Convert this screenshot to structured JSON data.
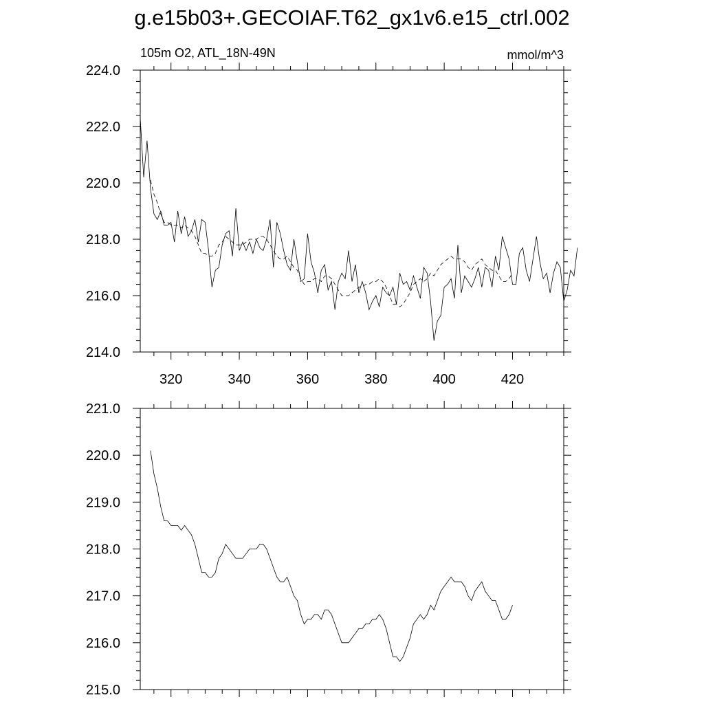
{
  "title": "g.e15b03+.GECOIAF.T62_gx1v6.e15_ctrl.002",
  "chart_data": [
    {
      "type": "line",
      "left_label": "105m O2, ATL_18N-49N",
      "right_label": "mmol/m^3",
      "xlim": [
        311,
        435
      ],
      "ylim": [
        214.0,
        224.0
      ],
      "x_ticks": [
        "320",
        "340",
        "360",
        "380",
        "400",
        "420"
      ],
      "y_ticks": [
        "214.0",
        "216.0",
        "218.0",
        "220.0",
        "222.0",
        "224.0"
      ],
      "x_start": 311,
      "series": [
        {
          "style": "solid",
          "values": [
            222.3,
            220.2,
            221.5,
            219.8,
            218.9,
            218.7,
            219.0,
            218.5,
            218.5,
            218.6,
            217.9,
            219.0,
            218.2,
            218.8,
            218.1,
            218.3,
            218.7,
            217.9,
            218.7,
            218.6,
            217.6,
            216.3,
            216.9,
            217.0,
            217.8,
            218.2,
            218.3,
            217.4,
            219.1,
            217.6,
            217.9,
            217.6,
            217.9,
            217.5,
            218.0,
            217.7,
            217.6,
            218.0,
            218.7,
            217.0,
            218.6,
            218.2,
            217.6,
            217.1,
            216.9,
            218.0,
            217.2,
            216.5,
            216.6,
            218.2,
            217.2,
            216.8,
            216.1,
            216.9,
            217.1,
            216.2,
            216.5,
            215.5,
            216.5,
            216.8,
            216.6,
            217.6,
            216.5,
            217.1,
            216.1,
            216.5,
            216.1,
            215.5,
            215.8,
            216.0,
            215.6,
            216.3,
            216.1,
            216.0,
            216.3,
            215.7,
            216.8,
            216.4,
            216.5,
            216.2,
            216.7,
            216.3,
            215.9,
            217.0,
            216.8,
            215.8,
            214.4,
            215.1,
            215.3,
            216.3,
            216.4,
            216.6,
            215.9,
            217.8,
            216.1,
            216.7,
            216.5,
            216.3,
            216.6,
            217.0,
            216.3,
            217.0,
            216.9,
            216.3,
            217.4,
            216.9,
            218.1,
            217.7,
            217.3,
            216.4,
            216.4,
            217.5,
            217.7,
            216.9,
            216.5,
            217.3,
            218.1,
            217.2,
            216.6,
            216.8,
            216.1,
            216.8,
            217.2,
            217.0,
            215.8,
            216.2,
            216.9,
            216.7,
            217.7
          ]
        },
        {
          "style": "dashed",
          "values": [
            null,
            null,
            null,
            220.1,
            219.6,
            219.3,
            218.9,
            218.6,
            218.6,
            218.5,
            218.5,
            218.5,
            218.4,
            218.5,
            218.4,
            218.3,
            218.1,
            217.8,
            217.5,
            217.5,
            217.4,
            217.4,
            217.5,
            217.8,
            217.9,
            218.1,
            218.0,
            217.9,
            217.8,
            217.8,
            217.8,
            217.9,
            218.0,
            218.0,
            218.0,
            218.1,
            218.1,
            218.0,
            217.8,
            217.6,
            217.4,
            217.3,
            217.3,
            217.4,
            217.2,
            217.0,
            216.9,
            216.6,
            216.4,
            216.5,
            216.5,
            216.6,
            216.6,
            216.5,
            216.7,
            216.7,
            216.6,
            216.4,
            216.2,
            216.0,
            216.0,
            216.0,
            216.1,
            216.2,
            216.3,
            216.3,
            216.4,
            216.4,
            216.5,
            216.5,
            216.6,
            216.5,
            216.3,
            216.0,
            215.7,
            215.7,
            215.6,
            215.7,
            215.9,
            216.1,
            216.4,
            216.5,
            216.6,
            216.5,
            216.6,
            216.8,
            216.7,
            216.9,
            217.1,
            217.2,
            217.3,
            217.4,
            217.3,
            217.3,
            217.3,
            217.2,
            217.0,
            216.9,
            217.1,
            217.2,
            217.3,
            217.1,
            217.0,
            216.9,
            216.9,
            216.7,
            216.5,
            216.5,
            216.6,
            216.8,
            null,
            null,
            null
          ]
        }
      ]
    },
    {
      "type": "line",
      "xlim": [
        311,
        435
      ],
      "ylim": [
        215.0,
        221.0
      ],
      "y_ticks": [
        "215.0",
        "216.0",
        "217.0",
        "218.0",
        "219.0",
        "220.0",
        "221.0"
      ],
      "x_start": 311,
      "series": [
        {
          "style": "solid",
          "values": [
            null,
            null,
            null,
            220.1,
            219.6,
            219.3,
            218.9,
            218.6,
            218.6,
            218.5,
            218.5,
            218.5,
            218.4,
            218.5,
            218.4,
            218.3,
            218.1,
            217.8,
            217.5,
            217.5,
            217.4,
            217.4,
            217.5,
            217.8,
            217.9,
            218.1,
            218.0,
            217.9,
            217.8,
            217.8,
            217.8,
            217.9,
            218.0,
            218.0,
            218.0,
            218.1,
            218.1,
            218.0,
            217.8,
            217.6,
            217.4,
            217.3,
            217.3,
            217.4,
            217.2,
            217.0,
            216.9,
            216.6,
            216.4,
            216.5,
            216.5,
            216.6,
            216.6,
            216.5,
            216.7,
            216.7,
            216.6,
            216.4,
            216.2,
            216.0,
            216.0,
            216.0,
            216.1,
            216.2,
            216.3,
            216.3,
            216.4,
            216.4,
            216.5,
            216.5,
            216.6,
            216.5,
            216.3,
            216.0,
            215.7,
            215.7,
            215.6,
            215.7,
            215.9,
            216.1,
            216.4,
            216.5,
            216.6,
            216.5,
            216.6,
            216.8,
            216.7,
            216.9,
            217.1,
            217.2,
            217.3,
            217.4,
            217.3,
            217.3,
            217.3,
            217.2,
            217.0,
            216.9,
            217.1,
            217.2,
            217.3,
            217.1,
            217.0,
            216.9,
            216.9,
            216.7,
            216.5,
            216.5,
            216.6,
            216.8,
            null,
            null,
            null
          ]
        }
      ]
    }
  ]
}
